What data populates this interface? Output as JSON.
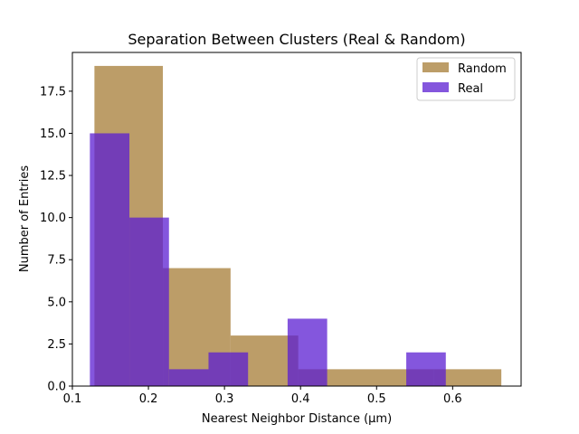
{
  "chart_data": {
    "type": "bar",
    "subtype": "overlaid-histogram",
    "title": "Separation Between Clusters (Real & Random)",
    "xlabel": "Nearest Neighbor Distance (μm)",
    "ylabel": "Number of Entries",
    "xlim": [
      0.1,
      0.69
    ],
    "ylim": [
      0,
      19.8
    ],
    "xticks": [
      0.1,
      0.2,
      0.3,
      0.4,
      0.5,
      0.6
    ],
    "xtick_labels": [
      "0.1",
      "0.2",
      "0.3",
      "0.4",
      "0.5",
      "0.6"
    ],
    "yticks": [
      0,
      2.5,
      5,
      7.5,
      10,
      12.5,
      15,
      17.5
    ],
    "ytick_labels": [
      "0.0",
      "2.5",
      "5.0",
      "7.5",
      "10.0",
      "12.5",
      "15.0",
      "17.5"
    ],
    "grid": false,
    "legend_position": "top-right",
    "series": [
      {
        "name": "Random",
        "color": "#a57c36",
        "opacity": 0.75,
        "bins": [
          0.129,
          0.2195,
          0.31,
          0.4005,
          0.491,
          0.5815,
          0.672
        ],
        "display_edges": [
          0.129,
          0.219,
          0.308,
          0.397,
          0.486,
          0.575,
          0.664
        ],
        "values": [
          19,
          7,
          3,
          1,
          1,
          1
        ]
      },
      {
        "name": "Real",
        "color": "#5b1ed2",
        "opacity": 0.75,
        "display_edges": [
          0.123,
          0.175,
          0.227,
          0.279,
          0.331,
          0.383,
          0.435,
          0.487,
          0.539,
          0.591
        ],
        "values": [
          15,
          10,
          1,
          2,
          0,
          4,
          0,
          0,
          2
        ]
      }
    ]
  }
}
